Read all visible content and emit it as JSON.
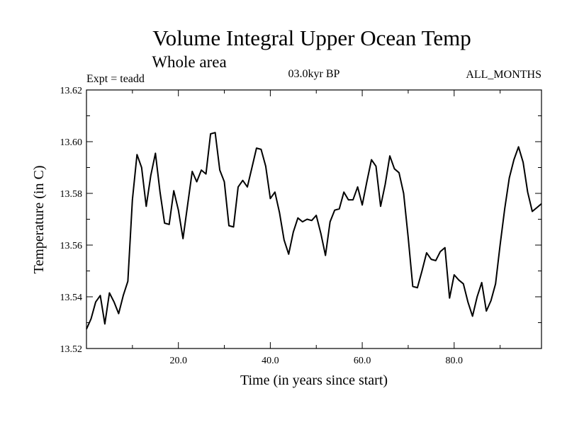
{
  "chart_data": {
    "type": "line",
    "title": "Volume Integral Upper Ocean Temp",
    "subtitle": "Whole area",
    "labels": {
      "left": "Expt = teadd",
      "center": "03.0kyr BP",
      "right": "ALL_MONTHS"
    },
    "xlabel": "Time (in years since start)",
    "ylabel": "Temperature (in C)",
    "xlim": [
      0,
      99
    ],
    "ylim": [
      13.52,
      13.62
    ],
    "xticks": [
      20,
      40,
      60,
      80
    ],
    "xtick_labels": [
      "20.0",
      "40.0",
      "60.0",
      "80.0"
    ],
    "yticks": [
      13.52,
      13.54,
      13.56,
      13.58,
      13.6,
      13.62
    ],
    "ytick_labels": [
      "13.52",
      "13.54",
      "13.56",
      "13.58",
      "13.60",
      "13.62"
    ],
    "series": [
      {
        "name": "Volume Integral Upper Ocean Temp",
        "color": "#000000",
        "x": [
          0,
          1,
          2,
          3,
          4,
          5,
          6,
          7,
          8,
          9,
          10,
          11,
          12,
          13,
          14,
          15,
          16,
          17,
          18,
          19,
          20,
          21,
          22,
          23,
          24,
          25,
          26,
          27,
          28,
          29,
          30,
          31,
          32,
          33,
          34,
          35,
          36,
          37,
          38,
          39,
          40,
          41,
          42,
          43,
          44,
          45,
          46,
          47,
          48,
          49,
          50,
          51,
          52,
          53,
          54,
          55,
          56,
          57,
          58,
          59,
          60,
          61,
          62,
          63,
          64,
          65,
          66,
          67,
          68,
          69,
          70,
          71,
          72,
          73,
          74,
          75,
          76,
          77,
          78,
          79,
          80,
          81,
          82,
          83,
          84,
          85,
          86,
          87,
          88,
          89,
          90,
          91,
          92,
          93,
          94,
          95,
          96,
          97,
          98,
          99
        ],
        "values": [
          13.5275,
          13.5315,
          13.538,
          13.5405,
          13.5295,
          13.5415,
          13.538,
          13.5335,
          13.5405,
          13.546,
          13.5775,
          13.595,
          13.59,
          13.575,
          13.587,
          13.5955,
          13.5805,
          13.5685,
          13.568,
          13.581,
          13.5735,
          13.5625,
          13.5755,
          13.5885,
          13.5845,
          13.589,
          13.5875,
          13.603,
          13.6035,
          13.589,
          13.5845,
          13.5675,
          13.567,
          13.5825,
          13.585,
          13.5825,
          13.59,
          13.5975,
          13.597,
          13.5905,
          13.578,
          13.5805,
          13.5725,
          13.562,
          13.5565,
          13.565,
          13.5705,
          13.569,
          13.57,
          13.5695,
          13.5715,
          13.5645,
          13.556,
          13.569,
          13.5735,
          13.574,
          13.5805,
          13.5775,
          13.5775,
          13.5825,
          13.5755,
          13.5845,
          13.593,
          13.5905,
          13.575,
          13.5835,
          13.5945,
          13.5895,
          13.588,
          13.58,
          13.563,
          13.544,
          13.5435,
          13.55,
          13.557,
          13.5545,
          13.554,
          13.5575,
          13.559,
          13.5395,
          13.5485,
          13.5465,
          13.545,
          13.538,
          13.5325,
          13.54,
          13.5455,
          13.5345,
          13.5385,
          13.545,
          13.56,
          13.574,
          13.586,
          13.593,
          13.598,
          13.592,
          13.5805,
          13.573,
          13.5745,
          13.576
        ]
      }
    ]
  }
}
